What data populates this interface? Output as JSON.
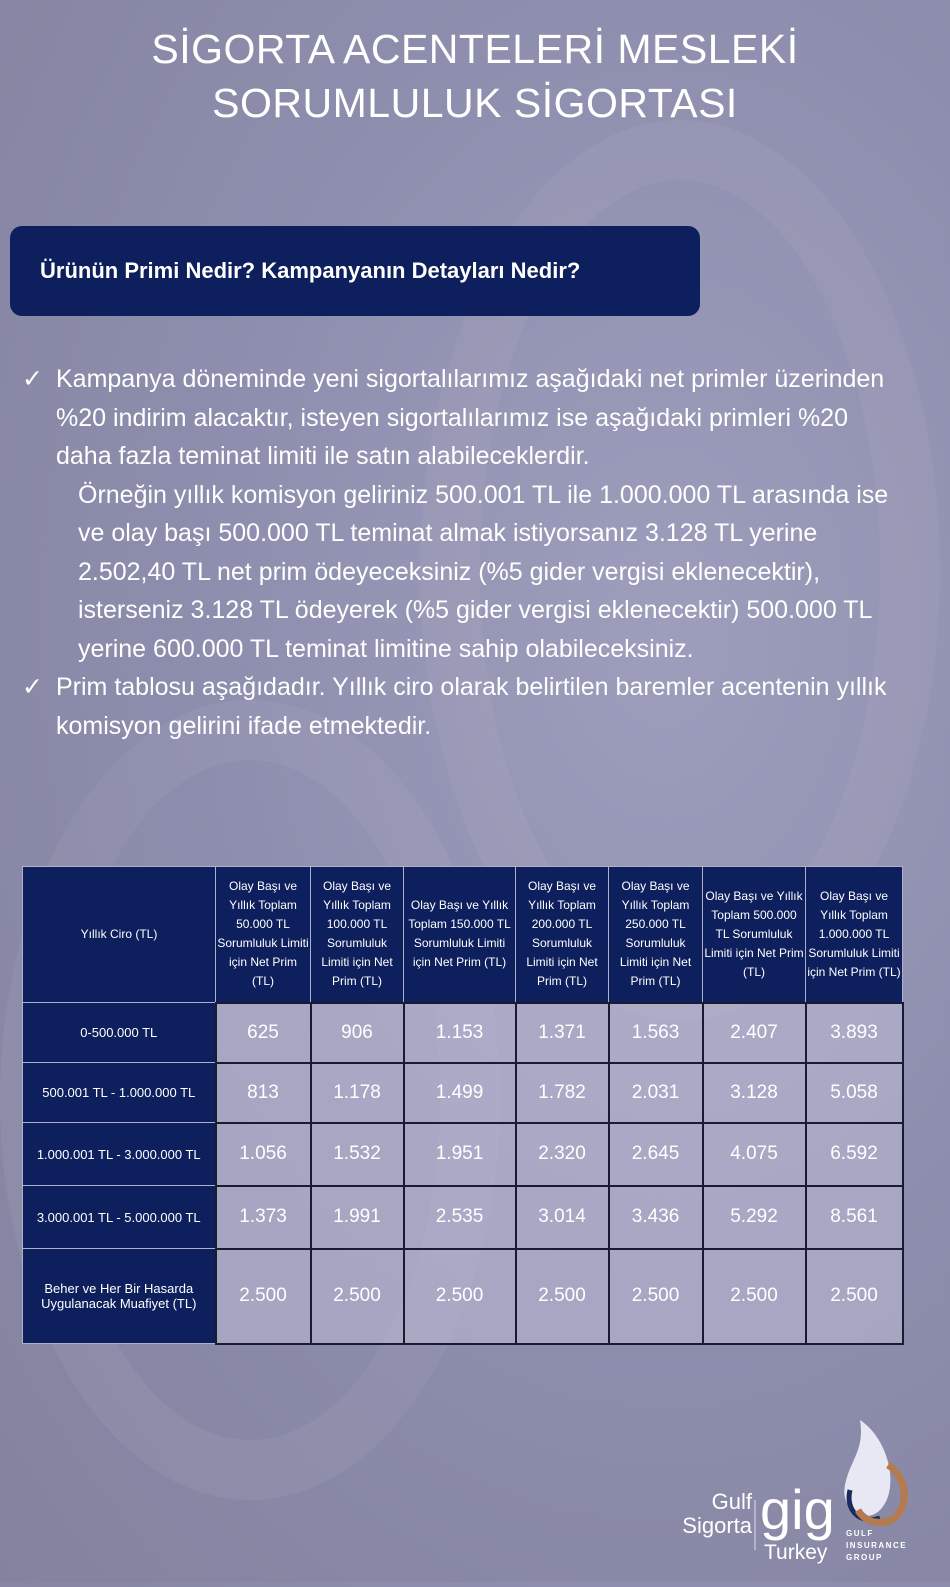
{
  "title": [
    "SİGORTA ACENTELERİ MESLEKİ",
    "SORUMLULUK SİGORTASI"
  ],
  "banner": "Ürünün Primi Nedir? Kampanyanın Detayları Nedir?",
  "check_icon": "✓",
  "bullet1": "Kampanya döneminde yeni sigortalılarımız aşağıdaki net primler üzerinden %20 indirim alacaktır, isteyen sigortalılarımız ise aşağıdaki primleri %20 daha fazla teminat limiti ile satın alabileceklerdir.",
  "example": "Örneğin yıllık komisyon geliriniz 500.001 TL ile 1.000.000 TL arasında ise ve olay başı 500.000 TL teminat almak istiyorsanız 3.128 TL yerine 2.502,40 TL net prim ödeyeceksiniz (%5 gider vergisi eklenecektir), isterseniz 3.128 TL ödeyerek (%5 gider vergisi eklenecektir) 500.000 TL yerine 600.000 TL teminat limitine sahip olabileceksiniz.",
  "bullet2": "Prim tablosu aşağıdadır. Yıllık ciro olarak belirtilen baremler acentenin yıllık komisyon gelirini ifade etmektedir.",
  "table": {
    "corner": "Yıllık Ciro (TL)",
    "headers": [
      "Olay Başı ve Yıllık Toplam 50.000 TL Sorumluluk Limiti için Net Prim (TL)",
      "Olay Başı ve Yıllık Toplam 100.000 TL Sorumluluk Limiti için Net Prim (TL)",
      "Olay Başı ve Yıllık Toplam 150.000 TL Sorumluluk Limiti için Net Prim (TL)",
      "Olay Başı ve Yıllık Toplam 200.000 TL Sorumluluk Limiti için Net Prim (TL)",
      "Olay Başı ve Yıllık Toplam 250.000 TL Sorumluluk Limiti için Net Prim (TL)",
      "Olay Başı ve Yıllık Toplam 500.000 TL Sorumluluk Limiti için Net Prim (TL)",
      "Olay Başı ve Yıllık Toplam 1.000.000 TL Sorumluluk Limiti için Net Prim (TL)"
    ],
    "rows": [
      {
        "label": "0-500.000 TL",
        "values": [
          "625",
          "906",
          "1.153",
          "1.371",
          "1.563",
          "2.407",
          "3.893"
        ]
      },
      {
        "label": "500.001 TL - 1.000.000 TL",
        "values": [
          "813",
          "1.178",
          "1.499",
          "1.782",
          "2.031",
          "3.128",
          "5.058"
        ]
      },
      {
        "label": "1.000.001 TL - 3.000.000 TL",
        "values": [
          "1.056",
          "1.532",
          "1.951",
          "2.320",
          "2.645",
          "4.075",
          "6.592"
        ]
      },
      {
        "label": "3.000.001 TL - 5.000.000 TL",
        "values": [
          "1.373",
          "1.991",
          "2.535",
          "3.014",
          "3.436",
          "5.292",
          "8.561"
        ]
      },
      {
        "label": "Beher ve Her Bir Hasarda Uygulanacak Muafiyet (TL)",
        "values": [
          "2.500",
          "2.500",
          "2.500",
          "2.500",
          "2.500",
          "2.500",
          "2.500"
        ]
      }
    ]
  },
  "logo": {
    "left": [
      "Gulf",
      "Sigorta"
    ],
    "mark": "gig",
    "sub": [
      "GULF",
      "INSURANCE",
      "GROUP"
    ],
    "country": "Turkey"
  }
}
